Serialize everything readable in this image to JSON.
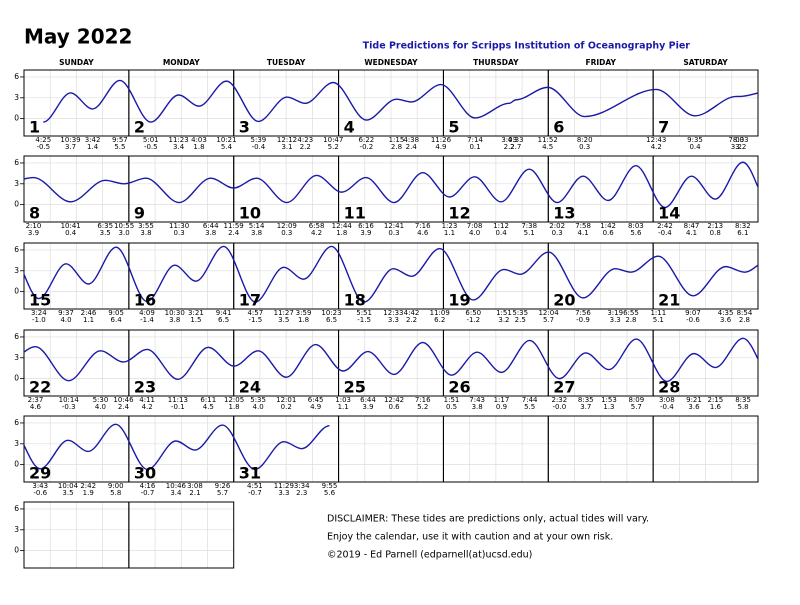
{
  "title": "May 2022",
  "subtitle": "Tide Predictions for Scripps Institution of Oceanography Pier",
  "weekdays": [
    "SUNDAY",
    "MONDAY",
    "TUESDAY",
    "WEDNESDAY",
    "THURSDAY",
    "FRIDAY",
    "SATURDAY"
  ],
  "ylim": [
    -2.5,
    7
  ],
  "yticks": [
    0,
    3,
    6
  ],
  "days": [
    {
      "day": 1,
      "times": [
        "4:25",
        "10:39",
        "3:42",
        "9:57"
      ],
      "values": [
        -0.5,
        3.7,
        1.4,
        5.5
      ],
      "value_labels": [
        "-0.5",
        "3.7",
        "1.4",
        "5.5"
      ]
    },
    {
      "day": 2,
      "times": [
        "5:01",
        "11:23",
        "4:03",
        "10:21"
      ],
      "values": [
        -0.5,
        3.4,
        1.8,
        5.4
      ],
      "value_labels": [
        "-0.5",
        "3.4",
        "1.8",
        "5.4"
      ]
    },
    {
      "day": 3,
      "times": [
        "5:39",
        "12:12",
        "4:23",
        "10:47"
      ],
      "values": [
        -0.4,
        3.1,
        2.2,
        5.2
      ],
      "value_labels": [
        "-0.4",
        "3.1",
        "2.2",
        "5.2"
      ]
    },
    {
      "day": 4,
      "times": [
        "6:22",
        "1:15",
        "4:38",
        "11:26"
      ],
      "values": [
        -0.2,
        2.8,
        2.4,
        4.9
      ],
      "value_labels": [
        "-0.2",
        "2.8",
        "2.4",
        "4.9"
      ]
    },
    {
      "day": 5,
      "times": [
        "7:14",
        "3:03",
        "4:33",
        "11:52"
      ],
      "values": [
        0.1,
        2.2,
        2.7,
        4.5
      ],
      "value_labels": [
        "0.1",
        "2.2",
        "2.7",
        "4.5"
      ]
    },
    {
      "day": 6,
      "times": [
        "8:20"
      ],
      "values": [
        0.3
      ],
      "value_labels": [
        "0.3"
      ]
    },
    {
      "day": 7,
      "times": [
        "12:43",
        "9:35",
        "7:03",
        "8:03"
      ],
      "values": [
        4.2,
        0.4,
        3.2,
        3.2
      ],
      "value_labels": [
        "4.2",
        "0.4",
        "3.2",
        "3.2"
      ]
    },
    {
      "day": 8,
      "times": [
        "2:10",
        "10:41",
        "6:35",
        "10:55"
      ],
      "values": [
        3.9,
        0.4,
        3.5,
        3.0
      ],
      "value_labels": [
        "3.9",
        "0.4",
        "3.5",
        "3.0"
      ]
    },
    {
      "day": 9,
      "times": [
        "3:55",
        "11:30",
        "6:44",
        "11:59"
      ],
      "values": [
        3.8,
        0.3,
        3.8,
        2.4
      ],
      "value_labels": [
        "3.8",
        "0.3",
        "3.8",
        "2.4"
      ]
    },
    {
      "day": 10,
      "times": [
        "5:14",
        "12:09",
        "6:58"
      ],
      "values": [
        3.8,
        0.3,
        4.2
      ],
      "value_labels": [
        "3.8",
        "0.3",
        "4.2"
      ]
    },
    {
      "day": 11,
      "times": [
        "12:44",
        "6:16",
        "12:41",
        "7:16"
      ],
      "values": [
        1.8,
        3.9,
        0.3,
        4.6
      ],
      "value_labels": [
        "1.8",
        "3.9",
        "0.3",
        "4.6"
      ]
    },
    {
      "day": 12,
      "times": [
        "1:23",
        "7:08",
        "1:12",
        "7:38"
      ],
      "values": [
        1.1,
        4.0,
        0.4,
        5.1
      ],
      "value_labels": [
        "1.1",
        "4.0",
        "0.4",
        "5.1"
      ]
    },
    {
      "day": 13,
      "times": [
        "2:02",
        "7:58",
        "1:42",
        "8:03"
      ],
      "values": [
        0.3,
        4.1,
        0.6,
        5.6
      ],
      "value_labels": [
        "0.3",
        "4.1",
        "0.6",
        "5.6"
      ]
    },
    {
      "day": 14,
      "times": [
        "2:42",
        "8:47",
        "2:13",
        "8:32"
      ],
      "values": [
        -0.4,
        4.1,
        0.8,
        6.1
      ],
      "value_labels": [
        "-0.4",
        "4.1",
        "0.8",
        "6.1"
      ]
    },
    {
      "day": 15,
      "times": [
        "3:24",
        "9:37",
        "2:46",
        "9:05"
      ],
      "values": [
        -1.0,
        4.0,
        1.1,
        6.4
      ],
      "value_labels": [
        "-1.0",
        "4.0",
        "1.1",
        "6.4"
      ]
    },
    {
      "day": 16,
      "times": [
        "4:09",
        "10:30",
        "3:21",
        "9:41"
      ],
      "values": [
        -1.4,
        3.8,
        1.5,
        6.5
      ],
      "value_labels": [
        "-1.4",
        "3.8",
        "1.5",
        "6.5"
      ]
    },
    {
      "day": 17,
      "times": [
        "4:57",
        "11:27",
        "3:59",
        "10:23"
      ],
      "values": [
        -1.5,
        3.5,
        1.8,
        6.5
      ],
      "value_labels": [
        "-1.5",
        "3.5",
        "1.8",
        "6.5"
      ]
    },
    {
      "day": 18,
      "times": [
        "5:51",
        "12:33",
        "4:42",
        "11:09"
      ],
      "values": [
        -1.5,
        3.3,
        2.2,
        6.2
      ],
      "value_labels": [
        "-1.5",
        "3.3",
        "2.2",
        "6.2"
      ]
    },
    {
      "day": 19,
      "times": [
        "6:50",
        "1:51",
        "5:35"
      ],
      "values": [
        -1.2,
        3.2,
        2.5
      ],
      "value_labels": [
        "-1.2",
        "3.2",
        "2.5"
      ]
    },
    {
      "day": 20,
      "times": [
        "12:04",
        "7:56",
        "3:19",
        "6:55"
      ],
      "values": [
        5.7,
        -0.9,
        3.3,
        2.8
      ],
      "value_labels": [
        "5.7",
        "-0.9",
        "3.3",
        "2.8"
      ]
    },
    {
      "day": 21,
      "times": [
        "1:11",
        "9:07",
        "4:35",
        "8:54"
      ],
      "values": [
        5.1,
        -0.6,
        3.6,
        2.8
      ],
      "value_labels": [
        "5.1",
        "-0.6",
        "3.6",
        "2.8"
      ]
    },
    {
      "day": 22,
      "times": [
        "2:37",
        "10:14",
        "5:30",
        "10:46"
      ],
      "values": [
        4.6,
        -0.3,
        4.0,
        2.4
      ],
      "value_labels": [
        "4.6",
        "-0.3",
        "4.0",
        "2.4"
      ]
    },
    {
      "day": 23,
      "times": [
        "4:11",
        "11:13",
        "6:11"
      ],
      "values": [
        4.2,
        -0.1,
        4.5
      ],
      "value_labels": [
        "4.2",
        "-0.1",
        "4.5"
      ]
    },
    {
      "day": 24,
      "times": [
        "12:05",
        "5:35",
        "12:01",
        "6:45"
      ],
      "values": [
        1.8,
        4.0,
        0.2,
        4.9
      ],
      "value_labels": [
        "1.8",
        "4.0",
        "0.2",
        "4.9"
      ]
    },
    {
      "day": 25,
      "times": [
        "1:03",
        "6:44",
        "12:42",
        "7:16"
      ],
      "values": [
        1.1,
        3.9,
        0.6,
        5.2
      ],
      "value_labels": [
        "1.1",
        "3.9",
        "0.6",
        "5.2"
      ]
    },
    {
      "day": 26,
      "times": [
        "1:51",
        "7:43",
        "1:17",
        "7:44"
      ],
      "values": [
        0.5,
        3.8,
        0.9,
        5.5
      ],
      "value_labels": [
        "0.5",
        "3.8",
        "0.9",
        "5.5"
      ]
    },
    {
      "day": 27,
      "times": [
        "2:32",
        "8:35",
        "1:53",
        "8:09"
      ],
      "values": [
        -0.0,
        3.7,
        1.3,
        5.7
      ],
      "value_labels": [
        "-0.0",
        "3.7",
        "1.3",
        "5.7"
      ]
    },
    {
      "day": 28,
      "times": [
        "3:08",
        "9:21",
        "2:15",
        "8:35"
      ],
      "values": [
        -0.4,
        3.6,
        1.6,
        5.8
      ],
      "value_labels": [
        "-0.4",
        "3.6",
        "1.6",
        "5.8"
      ]
    },
    {
      "day": 29,
      "times": [
        "3:43",
        "10:04",
        "2:42",
        "9:00"
      ],
      "values": [
        -0.6,
        3.5,
        1.9,
        5.8
      ],
      "value_labels": [
        "-0.6",
        "3.5",
        "1.9",
        "5.8"
      ]
    },
    {
      "day": 30,
      "times": [
        "4:16",
        "10:46",
        "3:08",
        "9:26"
      ],
      "values": [
        -0.7,
        3.4,
        2.1,
        5.7
      ],
      "value_labels": [
        "-0.7",
        "3.4",
        "2.1",
        "5.7"
      ]
    },
    {
      "day": 31,
      "times": [
        "4:51",
        "11:29",
        "3:34",
        "9:55"
      ],
      "values": [
        -0.7,
        3.3,
        2.3,
        5.6
      ],
      "value_labels": [
        "-0.7",
        "3.3",
        "2.3",
        "5.6"
      ]
    }
  ],
  "disclaimer": [
    "DISCLAIMER: These tides are predictions only, actual tides will vary.",
    "Enjoy the calendar, use it with caution and at your own risk.",
    "©2019 - Ed Parnell (edparnell(at)ucsd.edu)"
  ]
}
